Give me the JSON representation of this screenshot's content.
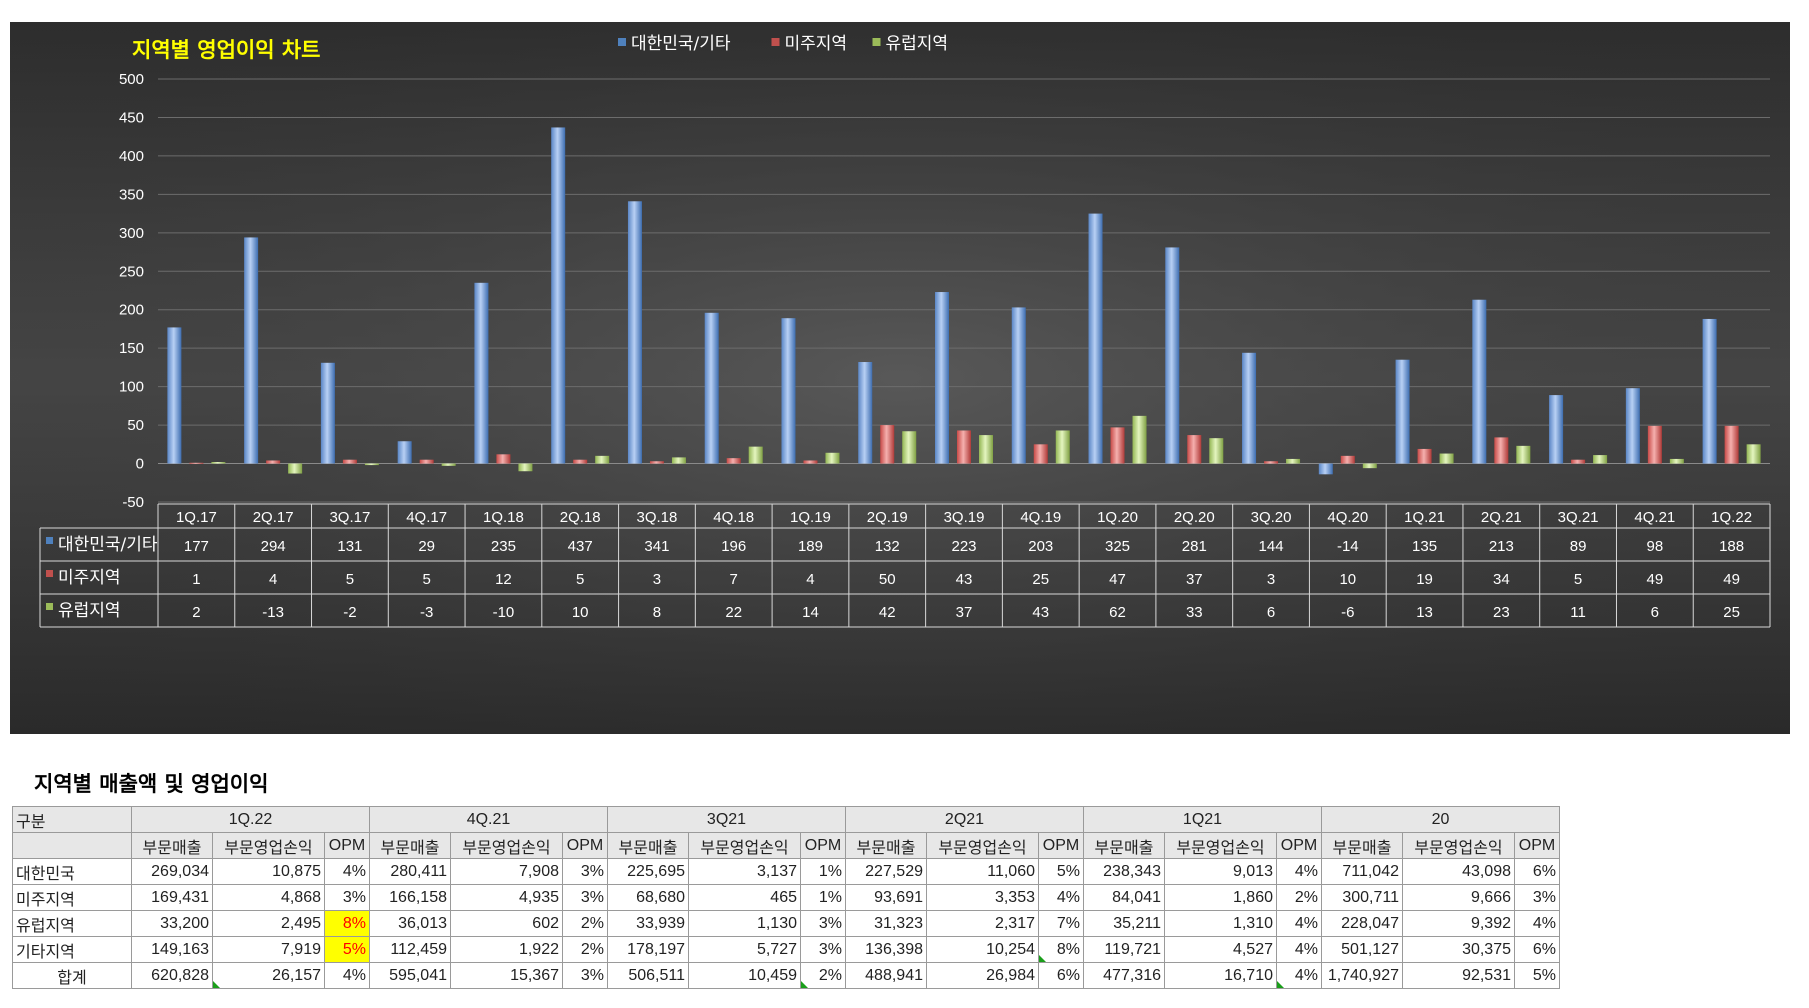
{
  "chart_data": {
    "type": "bar",
    "title": "지역별 영업이익 차트",
    "categories": [
      "1Q.17",
      "2Q.17",
      "3Q.17",
      "4Q.17",
      "1Q.18",
      "2Q.18",
      "3Q.18",
      "4Q.18",
      "1Q.19",
      "2Q.19",
      "3Q.19",
      "4Q.19",
      "1Q.20",
      "2Q.20",
      "3Q.20",
      "4Q.20",
      "1Q.21",
      "2Q.21",
      "3Q.21",
      "4Q.21",
      "1Q.22"
    ],
    "series": [
      {
        "name": "대한민국/기타",
        "color": "#4f81bd",
        "values": [
          177,
          294,
          131,
          29,
          235,
          437,
          341,
          196,
          189,
          132,
          223,
          203,
          325,
          281,
          144,
          -14,
          135,
          213,
          89,
          98,
          188
        ]
      },
      {
        "name": "미주지역",
        "color": "#c0504d",
        "values": [
          1,
          4,
          5,
          5,
          12,
          5,
          3,
          7,
          4,
          50,
          43,
          25,
          47,
          37,
          3,
          10,
          19,
          34,
          5,
          49,
          49
        ]
      },
      {
        "name": "유럽지역",
        "color": "#9bbb59",
        "values": [
          2,
          -13,
          -2,
          -3,
          -10,
          10,
          8,
          22,
          14,
          42,
          37,
          43,
          62,
          33,
          6,
          -6,
          13,
          23,
          11,
          6,
          25
        ]
      }
    ],
    "ylim": [
      -50,
      500
    ],
    "yticks": [
      -50,
      0,
      50,
      100,
      150,
      200,
      250,
      300,
      350,
      400,
      450,
      500
    ],
    "legend_position": "top",
    "grid": true,
    "data_table": true
  },
  "table": {
    "title": "지역별 매출액 및 영업이익",
    "corner_label": "구분",
    "periods": [
      "1Q.22",
      "4Q.21",
      "3Q21",
      "2Q21",
      "1Q21",
      "20"
    ],
    "sub_headers": [
      "부문매출",
      "부문영업손익",
      "OPM"
    ],
    "rows": [
      {
        "label": "대한민국",
        "cells": [
          [
            "269,034",
            "10,875",
            "4%"
          ],
          [
            "280,411",
            "7,908",
            "3%"
          ],
          [
            "225,695",
            "3,137",
            "1%"
          ],
          [
            "227,529",
            "11,060",
            "5%"
          ],
          [
            "238,343",
            "9,013",
            "4%"
          ],
          [
            "711,042",
            "43,098",
            "6%"
          ]
        ]
      },
      {
        "label": "미주지역",
        "cells": [
          [
            "169,431",
            "4,868",
            "3%"
          ],
          [
            "166,158",
            "4,935",
            "3%"
          ],
          [
            "68,680",
            "465",
            "1%"
          ],
          [
            "93,691",
            "3,353",
            "4%"
          ],
          [
            "84,041",
            "1,860",
            "2%"
          ],
          [
            "300,711",
            "9,666",
            "3%"
          ]
        ]
      },
      {
        "label": "유럽지역",
        "cells": [
          [
            "33,200",
            "2,495",
            "8%"
          ],
          [
            "36,013",
            "602",
            "2%"
          ],
          [
            "33,939",
            "1,130",
            "3%"
          ],
          [
            "31,323",
            "2,317",
            "7%"
          ],
          [
            "35,211",
            "1,310",
            "4%"
          ],
          [
            "228,047",
            "9,392",
            "4%"
          ]
        ]
      },
      {
        "label": "기타지역",
        "cells": [
          [
            "149,163",
            "7,919",
            "5%"
          ],
          [
            "112,459",
            "1,922",
            "2%"
          ],
          [
            "178,197",
            "5,727",
            "3%"
          ],
          [
            "136,398",
            "10,254",
            "8%"
          ],
          [
            "119,721",
            "4,527",
            "4%"
          ],
          [
            "501,127",
            "30,375",
            "6%"
          ]
        ]
      },
      {
        "label": "합계",
        "cells": [
          [
            "620,828",
            "26,157",
            "4%"
          ],
          [
            "595,041",
            "15,367",
            "3%"
          ],
          [
            "506,511",
            "10,459",
            "2%"
          ],
          [
            "488,941",
            "26,984",
            "6%"
          ],
          [
            "477,316",
            "16,710",
            "4%"
          ],
          [
            "1,740,927",
            "92,531",
            "5%"
          ]
        ]
      }
    ],
    "highlight_color": "#ffff00",
    "highlight_text_color": "#ff0000"
  }
}
